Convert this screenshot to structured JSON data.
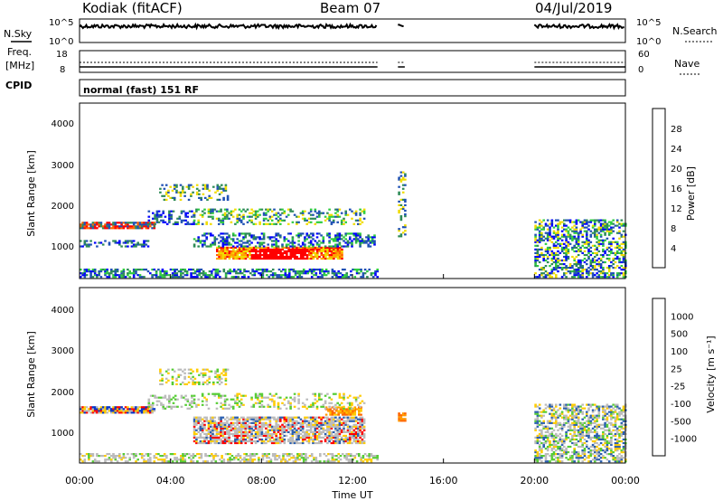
{
  "header": {
    "site": "Kodiak (fitACF)",
    "beam": "Beam 07",
    "date": "04/Jul/2019"
  },
  "noise_panel": {
    "left_label": "N.Sky",
    "right_label": "N.Search",
    "left_ticks": [
      "10^5",
      "10^0"
    ],
    "right_ticks": [
      "10^5",
      "10^0"
    ]
  },
  "freq_panel": {
    "left_label_1": "Freq.",
    "left_label_2": "[MHz]",
    "right_label": "Nave",
    "left_ticks": [
      "18",
      "8"
    ],
    "right_ticks": [
      "60",
      "0"
    ]
  },
  "cpid": {
    "label": "CPID",
    "mode": "normal (fast) 151 RF"
  },
  "power_panel": {
    "ylabel": "Slant Range [km]",
    "yticks": [
      "4000",
      "3000",
      "2000",
      "1000"
    ],
    "colorbar_label": "Power [dB]",
    "colorbar_ticks": [
      "28",
      "24",
      "20",
      "16",
      "12",
      "8",
      "4"
    ],
    "colors": [
      "#0000ff",
      "#1e50b4",
      "#2e8b57",
      "#2ecc40",
      "#f0dc00",
      "#ffa500",
      "#ff6400",
      "#ff0000"
    ]
  },
  "velocity_panel": {
    "ylabel": "Slant Range [km]",
    "yticks": [
      "4000",
      "3000",
      "2000",
      "1000"
    ],
    "colorbar_label": "Velocity [m s⁻¹]",
    "colorbar_ticks": [
      "1000",
      "500",
      "100",
      "25",
      "-25",
      "-100",
      "-500",
      "-1000"
    ],
    "colors": [
      "#0033cc",
      "#2a5fb0",
      "#2e8b57",
      "#55cc33",
      "#bbbbbb",
      "#ffcc00",
      "#ff9900",
      "#ff6600",
      "#ff0000"
    ]
  },
  "xaxis": {
    "label": "Time UT",
    "ticks": [
      "00:00",
      "04:00",
      "08:00",
      "12:00",
      "16:00",
      "20:00",
      "00:00"
    ]
  },
  "chart_data": {
    "type": "heatmap",
    "title": "Kodiak (fitACF)",
    "x_range_hours": [
      0,
      24
    ],
    "y_range_km": [
      180,
      4500
    ],
    "data_gaps_hours": [
      [
        13.1,
        14.0
      ],
      [
        14.3,
        20.0
      ]
    ],
    "power_features": [
      {
        "t_start": 6.0,
        "t_end": 11.5,
        "range_km": 800,
        "power_db": 28
      },
      {
        "t_start": 0.0,
        "t_end": 3.3,
        "range_km": 1480,
        "power_db": 24
      },
      {
        "t_start": 5.5,
        "t_end": 11.8,
        "range_km": 1700,
        "power_db": 16
      }
    ],
    "velocity_features": [
      {
        "t_start": 0.0,
        "t_end": 3.3,
        "range_km": 1480,
        "velocity_ms": -1000
      },
      {
        "t_start": 10.8,
        "t_end": 12.4,
        "range_km": 1450,
        "velocity_ms": -100
      },
      {
        "t_start": 14.0,
        "t_end": 14.3,
        "range_km": 1300,
        "velocity_ms": -500
      }
    ]
  }
}
